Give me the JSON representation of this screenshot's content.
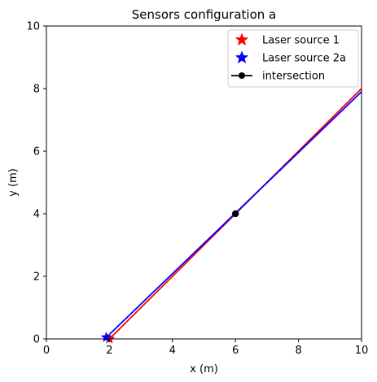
{
  "chart_data": {
    "type": "line",
    "title": "Sensors configuration a",
    "xlabel": "x (m)",
    "ylabel": "y (m)",
    "xlim": [
      0,
      10
    ],
    "ylim": [
      0,
      10
    ],
    "x_ticks": [
      0,
      2,
      4,
      6,
      8,
      10
    ],
    "y_ticks": [
      0,
      2,
      4,
      6,
      8,
      10
    ],
    "x_tick_labels": [
      "0",
      "2",
      "4",
      "6",
      "8",
      "10"
    ],
    "y_tick_labels": [
      "0",
      "2",
      "4",
      "6",
      "8",
      "10"
    ],
    "grid": false,
    "legend_position": "top-right",
    "lines": [
      {
        "color": "#ff0000",
        "x": [
          2.0,
          10.0
        ],
        "y": [
          0.0,
          8.0
        ]
      },
      {
        "color": "#0000ff",
        "x": [
          1.85,
          10.0
        ],
        "y": [
          0.0,
          7.9
        ]
      }
    ],
    "markers": [
      {
        "name": "Laser source 1",
        "shape": "star",
        "color": "#ff0000",
        "x": 2.0,
        "y": 0.0
      },
      {
        "name": "Laser source 2a",
        "shape": "star",
        "color": "#0000ff",
        "x": 1.9,
        "y": 0.05
      },
      {
        "name": "intersection",
        "shape": "circle",
        "color": "#000000",
        "x": 6.0,
        "y": 4.0
      }
    ],
    "legend": [
      {
        "label": "Laser source 1",
        "shape": "star",
        "color": "#ff0000"
      },
      {
        "label": "Laser source 2a",
        "shape": "star",
        "color": "#0000ff"
      },
      {
        "label": "intersection",
        "shape": "line-circle",
        "color": "#000000"
      }
    ]
  }
}
